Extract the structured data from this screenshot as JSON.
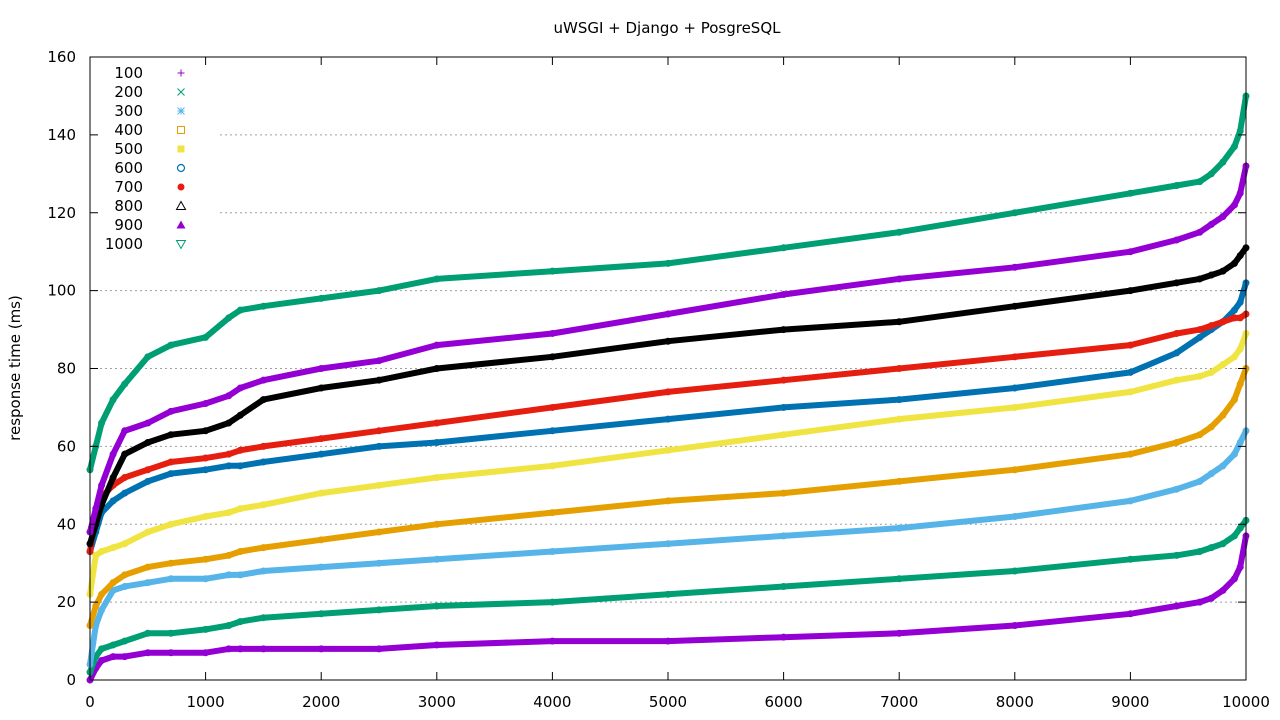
{
  "chart_data": {
    "type": "scatter",
    "title": "uWSGI + Django + PosgreSQL",
    "xlabel": "",
    "ylabel": "response time (ms)",
    "xlim": [
      0,
      10000
    ],
    "ylim": [
      0,
      160
    ],
    "x_ticks": [
      "0",
      "1000",
      "2000",
      "3000",
      "4000",
      "5000",
      "6000",
      "7000",
      "8000",
      "9000",
      "10000"
    ],
    "y_ticks": [
      "0",
      "20",
      "40",
      "60",
      "80",
      "100",
      "120",
      "140",
      "160"
    ],
    "grid": "horizontal dotted",
    "legend_position": "top-left",
    "x": [
      0,
      50,
      100,
      200,
      300,
      500,
      700,
      1000,
      1200,
      1300,
      1500,
      2000,
      2500,
      3000,
      4000,
      5000,
      6000,
      7000,
      8000,
      9000,
      9400,
      9600,
      9700,
      9800,
      9900,
      9950,
      10000
    ],
    "series": [
      {
        "name": "100",
        "color": "#9400d3",
        "marker": "plus",
        "values": [
          0,
          3,
          5,
          6,
          6,
          7,
          7,
          7,
          8,
          8,
          8,
          8,
          8,
          9,
          10,
          10,
          11,
          12,
          14,
          17,
          19,
          20,
          21,
          23,
          26,
          29,
          37
        ]
      },
      {
        "name": "200",
        "color": "#009e73",
        "marker": "cross",
        "values": [
          2,
          6,
          8,
          9,
          10,
          12,
          12,
          13,
          14,
          15,
          16,
          17,
          18,
          19,
          20,
          22,
          24,
          26,
          28,
          31,
          32,
          33,
          34,
          35,
          37,
          39,
          41
        ]
      },
      {
        "name": "300",
        "color": "#56b4e9",
        "marker": "star",
        "values": [
          4,
          14,
          18,
          23,
          24,
          25,
          26,
          26,
          27,
          27,
          28,
          29,
          30,
          31,
          33,
          35,
          37,
          39,
          42,
          46,
          49,
          51,
          53,
          55,
          58,
          61,
          64
        ]
      },
      {
        "name": "400",
        "color": "#e69f00",
        "marker": "box",
        "values": [
          14,
          19,
          22,
          25,
          27,
          29,
          30,
          31,
          32,
          33,
          34,
          36,
          38,
          40,
          43,
          46,
          48,
          51,
          54,
          58,
          61,
          63,
          65,
          68,
          72,
          76,
          80
        ]
      },
      {
        "name": "500",
        "color": "#f0e442",
        "marker": "filled-box",
        "values": [
          22,
          32,
          33,
          34,
          35,
          38,
          40,
          42,
          43,
          44,
          45,
          48,
          50,
          52,
          55,
          59,
          63,
          67,
          70,
          74,
          77,
          78,
          79,
          81,
          83,
          85,
          89
        ]
      },
      {
        "name": "600",
        "color": "#0072b2",
        "marker": "circle",
        "values": [
          33,
          38,
          43,
          46,
          48,
          51,
          53,
          54,
          55,
          55,
          56,
          58,
          60,
          61,
          64,
          67,
          70,
          72,
          75,
          79,
          84,
          88,
          90,
          92,
          95,
          97,
          102
        ]
      },
      {
        "name": "700",
        "color": "#e51e10",
        "marker": "filled-circle",
        "values": [
          33,
          43,
          47,
          50,
          52,
          54,
          56,
          57,
          58,
          59,
          60,
          62,
          64,
          66,
          70,
          74,
          77,
          80,
          83,
          86,
          89,
          90,
          91,
          92,
          93,
          93,
          94
        ]
      },
      {
        "name": "800",
        "color": "#000000",
        "marker": "triangle",
        "values": [
          35,
          40,
          45,
          52,
          58,
          61,
          63,
          64,
          66,
          68,
          72,
          75,
          77,
          80,
          83,
          87,
          90,
          92,
          96,
          100,
          102,
          103,
          104,
          105,
          107,
          109,
          111
        ]
      },
      {
        "name": "900",
        "color": "#9400d3",
        "marker": "filled-triangle",
        "values": [
          38,
          44,
          50,
          58,
          64,
          66,
          69,
          71,
          73,
          75,
          77,
          80,
          82,
          86,
          89,
          94,
          99,
          103,
          106,
          110,
          113,
          115,
          117,
          119,
          122,
          125,
          132
        ]
      },
      {
        "name": "1000",
        "color": "#009e73",
        "marker": "triangle-down",
        "values": [
          54,
          60,
          66,
          72,
          76,
          83,
          86,
          88,
          93,
          95,
          96,
          98,
          100,
          103,
          105,
          107,
          111,
          115,
          120,
          125,
          127,
          128,
          130,
          133,
          137,
          141,
          150
        ]
      }
    ]
  }
}
